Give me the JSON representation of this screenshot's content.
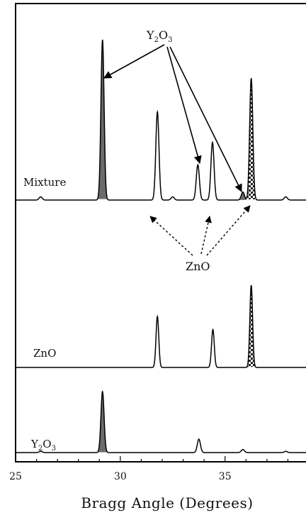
{
  "chart_data": {
    "type": "line",
    "xlabel": "Bragg Angle (Degrees)",
    "ylabel": "",
    "xlim": [
      25,
      39
    ],
    "x_ticks": [
      25,
      30,
      35
    ],
    "grid": false,
    "legend": "none",
    "series": [
      {
        "name": "Mixture",
        "label_main": "Mixture",
        "label_sub": "",
        "label_tail": "",
        "peaks": [
          {
            "x": 26.2,
            "height": 0.02,
            "fill": "none"
          },
          {
            "x": 29.15,
            "height": 1.0,
            "fill": "#6b6b6b"
          },
          {
            "x": 31.77,
            "height": 0.55,
            "fill": "none"
          },
          {
            "x": 32.5,
            "height": 0.02,
            "fill": "none"
          },
          {
            "x": 33.7,
            "height": 0.22,
            "fill": "none"
          },
          {
            "x": 34.4,
            "height": 0.36,
            "fill": "none"
          },
          {
            "x": 35.85,
            "height": 0.05,
            "fill": "#6b6b6b"
          },
          {
            "x": 36.25,
            "height": 0.76,
            "fill": "checker"
          },
          {
            "x": 37.9,
            "height": 0.02,
            "fill": "none"
          }
        ]
      },
      {
        "name": "ZnO",
        "label_main": "ZnO",
        "label_sub": "",
        "label_tail": "",
        "peaks": [
          {
            "x": 31.77,
            "height": 0.62,
            "fill": "none"
          },
          {
            "x": 34.42,
            "height": 0.46,
            "fill": "none"
          },
          {
            "x": 36.25,
            "height": 1.0,
            "fill": "checker"
          }
        ]
      },
      {
        "name": "Y2O3",
        "label_main": "Y",
        "label_sub": "2",
        "label_tail": "O",
        "label_sub2": "3",
        "peaks": [
          {
            "x": 26.2,
            "height": 0.02,
            "fill": "none"
          },
          {
            "x": 29.15,
            "height": 1.0,
            "fill": "#6b6b6b"
          },
          {
            "x": 33.75,
            "height": 0.22,
            "fill": "none"
          },
          {
            "x": 35.85,
            "height": 0.05,
            "fill": "none"
          },
          {
            "x": 37.9,
            "height": 0.02,
            "fill": "none"
          }
        ]
      }
    ],
    "annotations": [
      {
        "main": "Y",
        "sub": "2",
        "tail": "O",
        "sub2": "3",
        "style": "solid-arrows"
      },
      {
        "main": "ZnO",
        "sub": "",
        "tail": "",
        "sub2": "",
        "style": "dotted-arrows"
      }
    ]
  }
}
